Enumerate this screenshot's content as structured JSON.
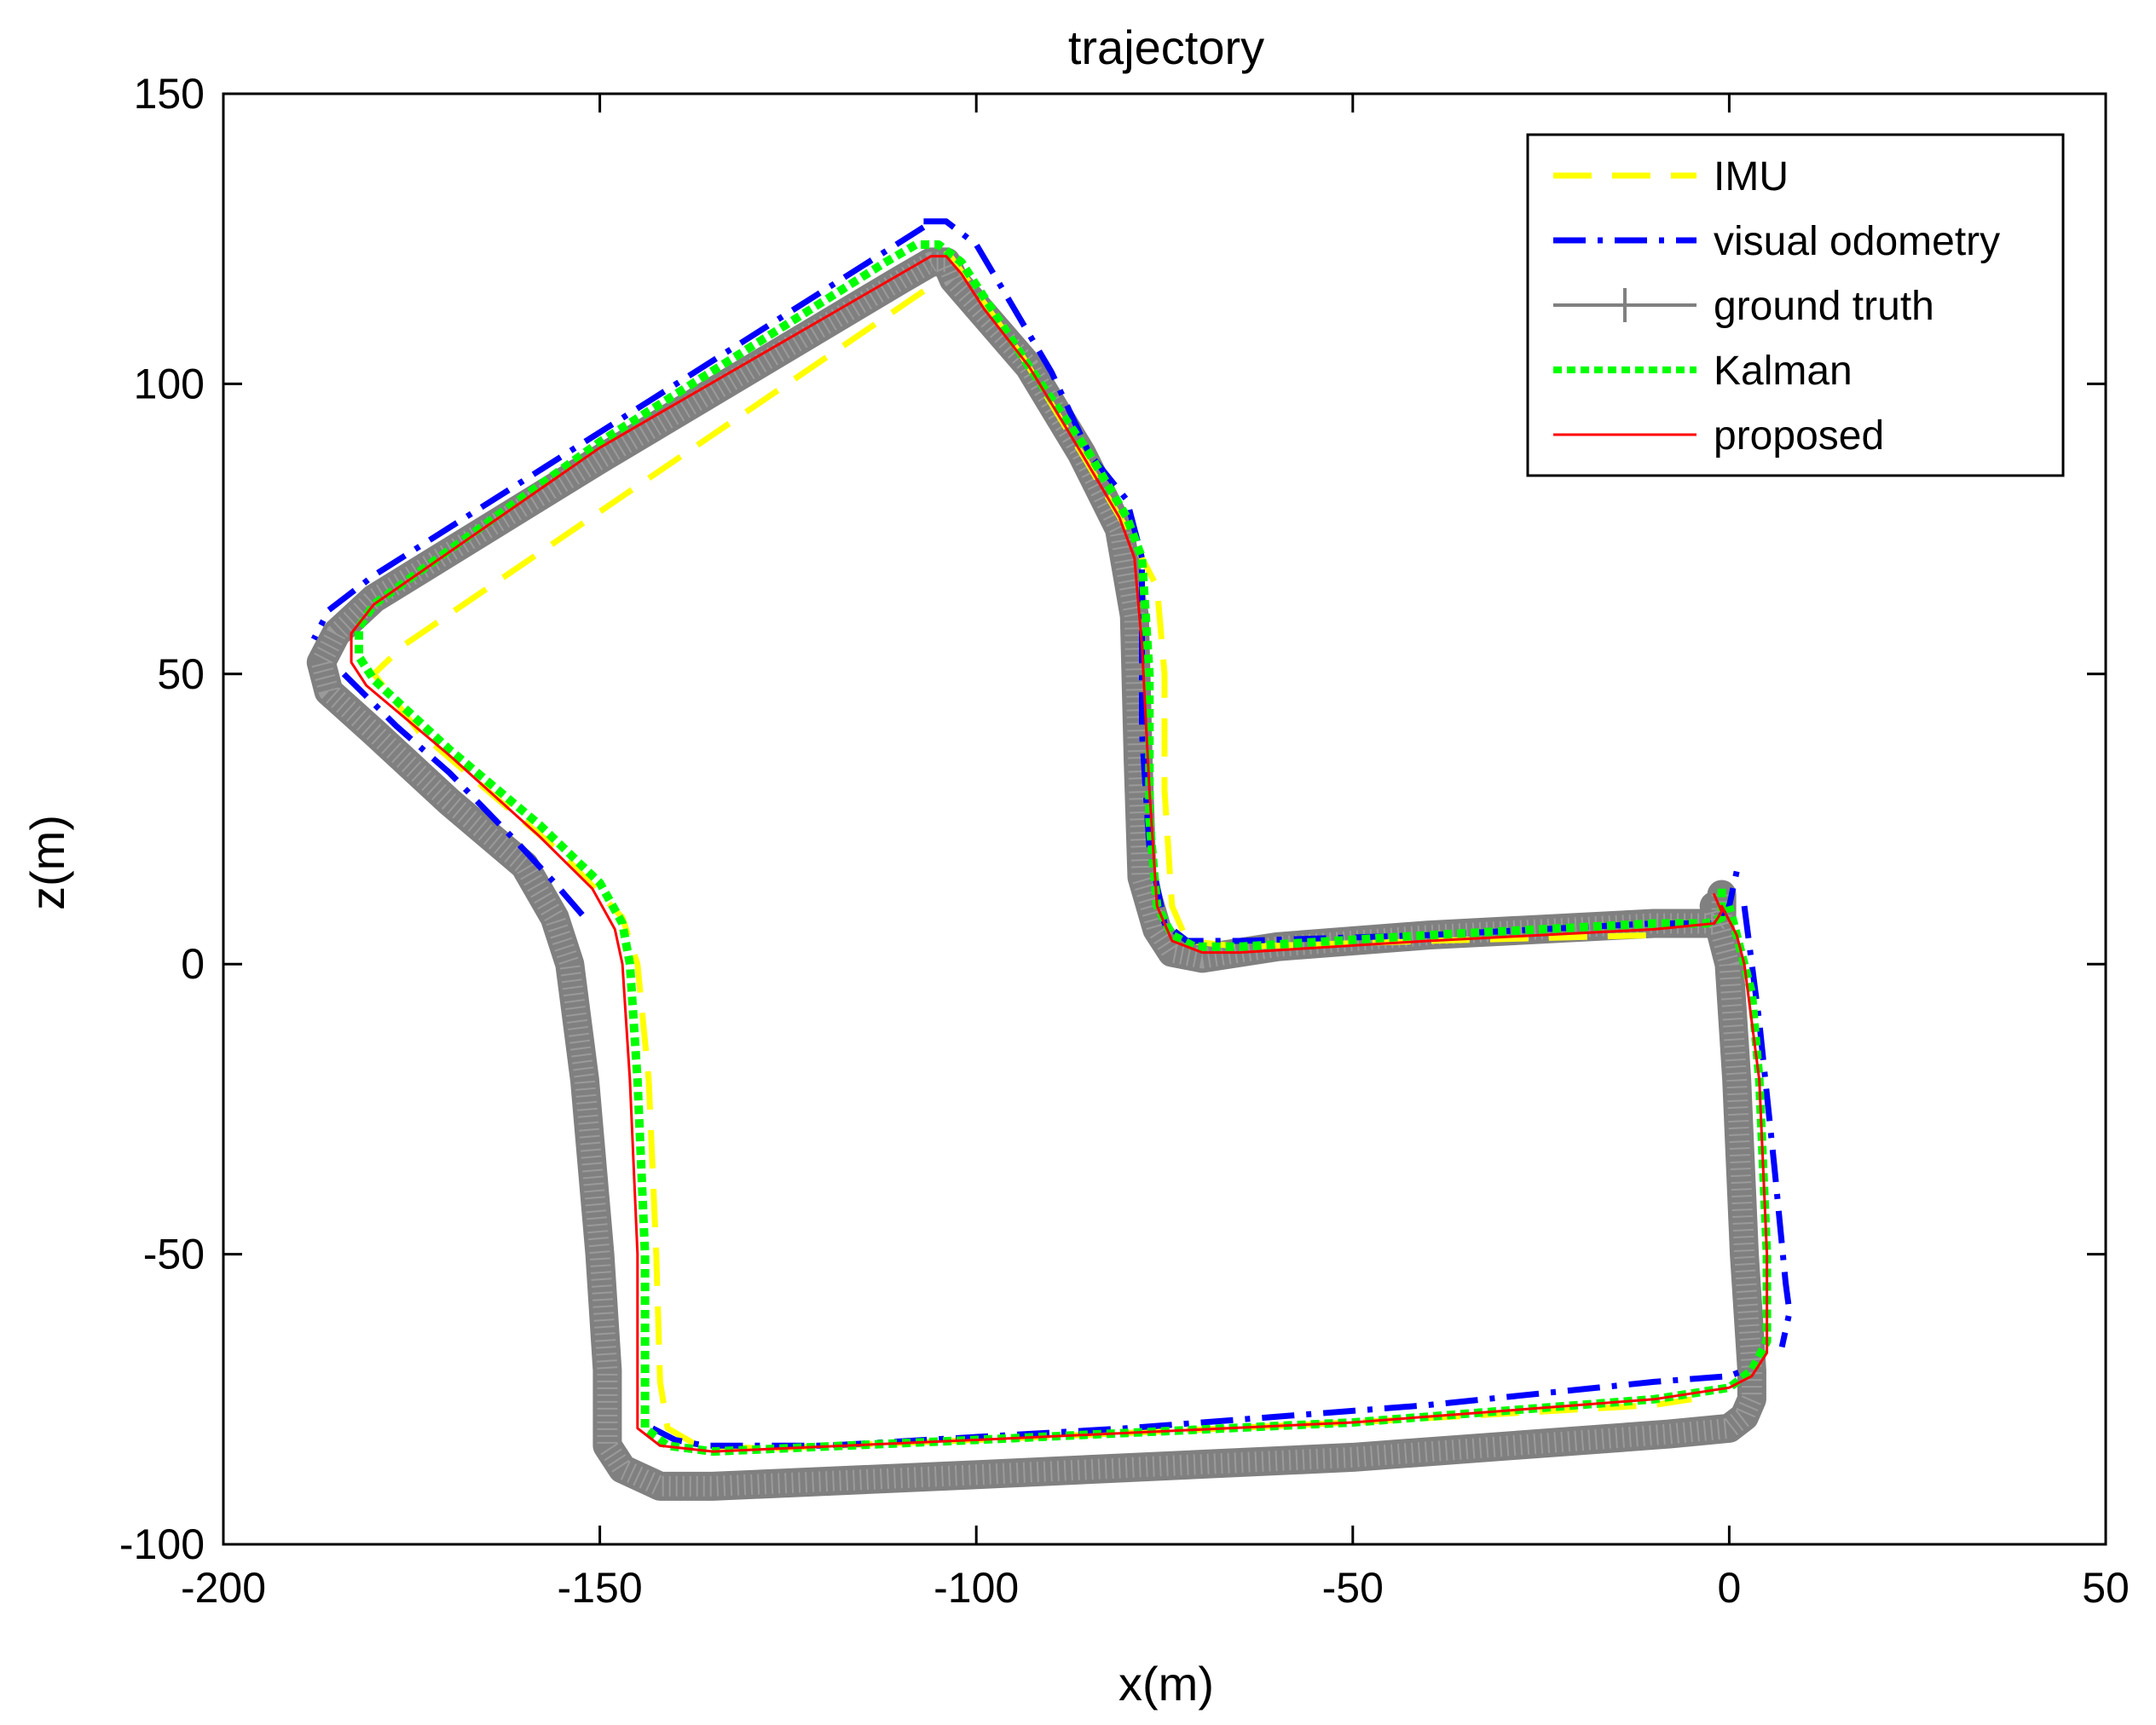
{
  "chart_data": {
    "type": "line",
    "title": "trajectory",
    "xlabel": "x(m)",
    "ylabel": "z(m)",
    "xlim": [
      -200,
      50
    ],
    "ylim": [
      -100,
      150
    ],
    "xticks": [
      -200,
      -150,
      -100,
      -50,
      0,
      50
    ],
    "yticks": [
      -100,
      -50,
      0,
      50,
      100,
      150
    ],
    "xtick_labels": [
      "-200",
      "-150",
      "-100",
      "-50",
      "0",
      "50"
    ],
    "ytick_labels": [
      "-100",
      "-50",
      "0",
      "50",
      "100",
      "150"
    ],
    "grid": false,
    "legend_position": "top-right",
    "series": [
      {
        "name": "IMU",
        "color": "#ffff00",
        "style": "dashed",
        "points": [
          [
            -107,
            116
          ],
          [
            -176,
            55
          ],
          [
            -180,
            50
          ],
          [
            -174,
            40
          ],
          [
            -165,
            30
          ],
          [
            -155,
            19
          ],
          [
            -147,
            8
          ],
          [
            -145,
            0
          ],
          [
            -143.5,
            -20
          ],
          [
            -142.5,
            -50
          ],
          [
            -142,
            -72
          ],
          [
            -141,
            -80
          ],
          [
            -137,
            -83
          ],
          [
            -128,
            -83.5
          ],
          [
            -100,
            -82
          ],
          [
            -50,
            -79
          ],
          [
            -10,
            -76
          ],
          [
            -5,
            -75
          ]
        ]
      },
      {
        "name": "IMU",
        "color": "#ffff00",
        "style": "dashed",
        "points": [
          [
            -104,
            123
          ],
          [
            -94,
            105
          ],
          [
            -86,
            88
          ],
          [
            -80,
            75
          ],
          [
            -76,
            65
          ],
          [
            -75,
            50
          ],
          [
            -75,
            30
          ],
          [
            -74,
            10
          ],
          [
            -72,
            4
          ],
          [
            -65,
            3
          ],
          [
            -40,
            4
          ],
          [
            -10,
            5
          ]
        ]
      },
      {
        "name": "visual odometry",
        "color": "#0000ff",
        "style": "dash-dot",
        "points": [
          [
            -107,
            128
          ],
          [
            -104,
            128
          ],
          [
            -100,
            124
          ],
          [
            -95,
            113
          ],
          [
            -90,
            102
          ],
          [
            -85,
            88
          ],
          [
            -80,
            80
          ],
          [
            -78,
            70
          ],
          [
            -78,
            40
          ],
          [
            -77,
            20
          ],
          [
            -75,
            7
          ],
          [
            -72,
            4
          ],
          [
            -65,
            4
          ],
          [
            -40,
            5
          ],
          [
            -10,
            7
          ],
          [
            -2,
            7
          ],
          [
            0,
            10
          ],
          [
            1,
            16
          ]
        ]
      },
      {
        "name": "visual odometry",
        "color": "#0000ff",
        "style": "dash-dot",
        "points": [
          [
            -107,
            127
          ],
          [
            -180,
            67
          ],
          [
            -186,
            61
          ],
          [
            -188,
            56
          ]
        ]
      },
      {
        "name": "visual odometry",
        "color": "#0000ff",
        "style": "dash-dot",
        "points": [
          [
            -184,
            50
          ],
          [
            -177,
            41
          ],
          [
            -170,
            33
          ],
          [
            -161,
            21
          ],
          [
            -156,
            14
          ],
          [
            -152,
            8
          ]
        ]
      },
      {
        "name": "visual odometry",
        "color": "#0000ff",
        "style": "dash-dot",
        "points": [
          [
            2,
            10
          ],
          [
            4,
            -10
          ],
          [
            6,
            -35
          ],
          [
            7.5,
            -55
          ],
          [
            8,
            -60
          ],
          [
            7,
            -66
          ]
        ]
      },
      {
        "name": "visual odometry",
        "color": "#0000ff",
        "style": "dash-dot",
        "points": [
          [
            -143,
            -80
          ],
          [
            -140,
            -82
          ],
          [
            -136,
            -83
          ],
          [
            -120,
            -83
          ],
          [
            -80,
            -80
          ],
          [
            -40,
            -76
          ],
          [
            -10,
            -72
          ],
          [
            0,
            -71
          ],
          [
            2,
            -70
          ]
        ]
      },
      {
        "name": "ground truth",
        "color": "#808080",
        "style": "solid-thick",
        "points": [
          [
            -1,
            12
          ],
          [
            -1,
            8
          ],
          [
            -2,
            7
          ],
          [
            -10,
            7
          ],
          [
            -40,
            5
          ],
          [
            -60,
            3
          ],
          [
            -70,
            1
          ],
          [
            -74,
            2
          ],
          [
            -76,
            6
          ],
          [
            -78,
            15
          ],
          [
            -78.5,
            35
          ],
          [
            -79,
            60
          ],
          [
            -81,
            75
          ],
          [
            -86,
            88
          ],
          [
            -93,
            103
          ],
          [
            -99,
            112
          ],
          [
            -103,
            118
          ],
          [
            -104,
            121
          ],
          [
            -106,
            121
          ],
          [
            -110,
            118
          ],
          [
            -150,
            87
          ],
          [
            -180,
            63
          ],
          [
            -185,
            57
          ],
          [
            -187,
            52
          ],
          [
            -186,
            47
          ],
          [
            -180,
            40
          ],
          [
            -170,
            28
          ],
          [
            -160,
            17
          ],
          [
            -156,
            8
          ],
          [
            -154,
            0
          ],
          [
            -152,
            -20
          ],
          [
            -150,
            -50
          ],
          [
            -149,
            -70
          ],
          [
            -149,
            -83
          ],
          [
            -147,
            -87
          ],
          [
            -142,
            -90
          ],
          [
            -135,
            -90
          ],
          [
            -100,
            -88
          ],
          [
            -50,
            -85
          ],
          [
            -8,
            -81
          ],
          [
            0,
            -80
          ],
          [
            2,
            -78
          ],
          [
            3,
            -75
          ],
          [
            3,
            -70
          ],
          [
            2,
            -50
          ],
          [
            1,
            -20
          ],
          [
            0,
            0
          ],
          [
            -1,
            5
          ],
          [
            -2,
            10
          ]
        ]
      },
      {
        "name": "Kalman",
        "color": "#00ff00",
        "style": "dotted",
        "points": [
          [
            -1,
            13
          ],
          [
            -1,
            8
          ],
          [
            -3,
            7
          ],
          [
            -10,
            7
          ],
          [
            -40,
            5
          ],
          [
            -65,
            3
          ],
          [
            -71,
            3
          ],
          [
            -74,
            5
          ],
          [
            -76,
            10
          ],
          [
            -77,
            25
          ],
          [
            -77,
            50
          ],
          [
            -78,
            70
          ],
          [
            -80,
            77
          ],
          [
            -85,
            88
          ],
          [
            -93,
            103
          ],
          [
            -98,
            113
          ],
          [
            -102,
            121
          ],
          [
            -105,
            124
          ],
          [
            -108,
            124
          ],
          [
            -112,
            121
          ],
          [
            -150,
            90
          ],
          [
            -180,
            62
          ],
          [
            -182,
            58
          ],
          [
            -182,
            53
          ],
          [
            -180,
            49
          ],
          [
            -170,
            37
          ],
          [
            -158,
            24
          ],
          [
            -150,
            14
          ],
          [
            -147,
            7
          ],
          [
            -146,
            0
          ],
          [
            -145,
            -20
          ],
          [
            -144,
            -50
          ],
          [
            -144,
            -70
          ],
          [
            -144,
            -80
          ],
          [
            -141,
            -83
          ],
          [
            -135,
            -84
          ],
          [
            -100,
            -82
          ],
          [
            -50,
            -79
          ],
          [
            -10,
            -75
          ],
          [
            0,
            -73
          ],
          [
            3,
            -70
          ],
          [
            5,
            -65
          ],
          [
            5,
            -50
          ],
          [
            4,
            -20
          ],
          [
            3,
            -5
          ],
          [
            1,
            5
          ],
          [
            0,
            10
          ]
        ]
      },
      {
        "name": "proposed",
        "color": "#ff0000",
        "style": "solid",
        "points": [
          [
            -2,
            12
          ],
          [
            -1,
            9
          ],
          [
            -2,
            7
          ],
          [
            -10,
            6
          ],
          [
            -40,
            4
          ],
          [
            -65,
            2
          ],
          [
            -70,
            2
          ],
          [
            -74,
            4
          ],
          [
            -76,
            10
          ],
          [
            -77,
            30
          ],
          [
            -78,
            55
          ],
          [
            -79,
            70
          ],
          [
            -81,
            77
          ],
          [
            -86,
            88
          ],
          [
            -93,
            103
          ],
          [
            -99,
            113
          ],
          [
            -102,
            119
          ],
          [
            -104,
            122
          ],
          [
            -106,
            122
          ],
          [
            -110,
            119
          ],
          [
            -150,
            89
          ],
          [
            -180,
            62
          ],
          [
            -183,
            57
          ],
          [
            -183,
            52
          ],
          [
            -181,
            48
          ],
          [
            -170,
            36
          ],
          [
            -158,
            22
          ],
          [
            -151,
            13
          ],
          [
            -148,
            6
          ],
          [
            -147,
            0
          ],
          [
            -146,
            -20
          ],
          [
            -145,
            -50
          ],
          [
            -145,
            -70
          ],
          [
            -145,
            -80
          ],
          [
            -142,
            -83
          ],
          [
            -135,
            -84
          ],
          [
            -100,
            -82
          ],
          [
            -50,
            -79
          ],
          [
            -10,
            -75
          ],
          [
            0,
            -73
          ],
          [
            3,
            -71
          ],
          [
            5,
            -67
          ],
          [
            5,
            -50
          ],
          [
            4,
            -20
          ],
          [
            2,
            0
          ],
          [
            1,
            5
          ],
          [
            -1,
            10
          ]
        ]
      }
    ],
    "legend": [
      {
        "name": "IMU",
        "color": "#ffff00",
        "style": "dashed"
      },
      {
        "name": "visual odometry",
        "color": "#0000ff",
        "style": "dash-dot"
      },
      {
        "name": "ground truth",
        "color": "#808080",
        "style": "solid-thick"
      },
      {
        "name": "Kalman",
        "color": "#00ff00",
        "style": "dotted"
      },
      {
        "name": "proposed",
        "color": "#ff0000",
        "style": "solid"
      }
    ]
  }
}
